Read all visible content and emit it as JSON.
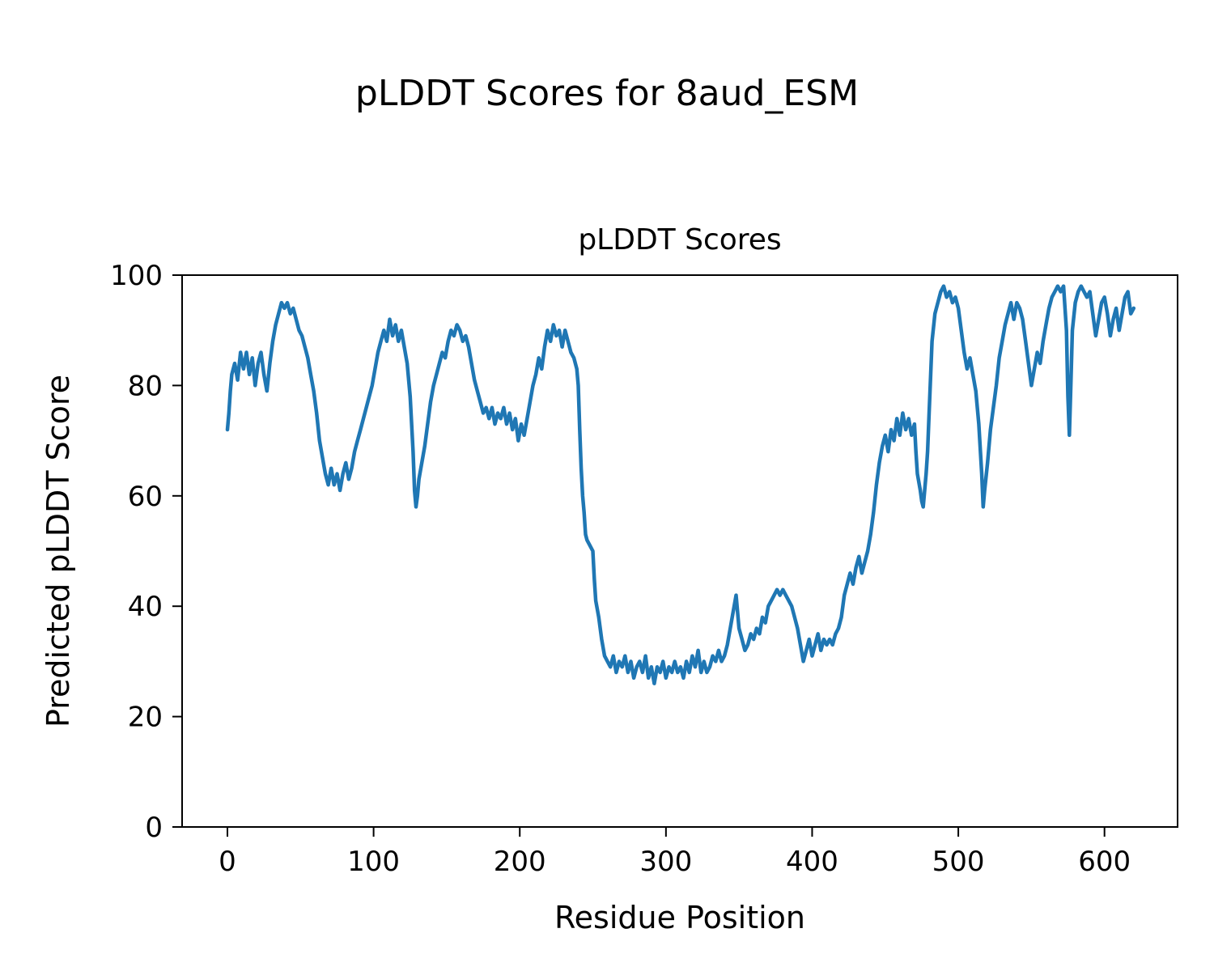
{
  "figure": {
    "suptitle": "pLDDT Scores for 8aud_ESM"
  },
  "chart_data": {
    "type": "line",
    "title": "pLDDT Scores",
    "xlabel": "Residue Position",
    "ylabel": "Predicted pLDDT Score",
    "xlim": [
      -31,
      650
    ],
    "ylim": [
      0,
      100
    ],
    "xticks": [
      0,
      100,
      200,
      300,
      400,
      500,
      600
    ],
    "yticks": [
      0,
      20,
      40,
      60,
      80,
      100
    ],
    "grid": false,
    "legend": null,
    "line_color": "#1f77b4",
    "series": [
      {
        "name": "pLDDT",
        "points": [
          [
            0,
            72
          ],
          [
            1,
            75
          ],
          [
            2,
            79
          ],
          [
            3,
            82
          ],
          [
            5,
            84
          ],
          [
            7,
            81
          ],
          [
            9,
            86
          ],
          [
            11,
            83
          ],
          [
            13,
            86
          ],
          [
            15,
            82
          ],
          [
            17,
            85
          ],
          [
            19,
            80
          ],
          [
            21,
            84
          ],
          [
            23,
            86
          ],
          [
            25,
            82
          ],
          [
            27,
            79
          ],
          [
            29,
            84
          ],
          [
            31,
            88
          ],
          [
            33,
            91
          ],
          [
            35,
            93
          ],
          [
            37,
            95
          ],
          [
            39,
            94
          ],
          [
            41,
            95
          ],
          [
            43,
            93
          ],
          [
            45,
            94
          ],
          [
            47,
            92
          ],
          [
            49,
            90
          ],
          [
            51,
            89
          ],
          [
            53,
            87
          ],
          [
            55,
            85
          ],
          [
            57,
            82
          ],
          [
            59,
            79
          ],
          [
            61,
            75
          ],
          [
            63,
            70
          ],
          [
            65,
            67
          ],
          [
            67,
            64
          ],
          [
            69,
            62
          ],
          [
            71,
            65
          ],
          [
            73,
            62
          ],
          [
            75,
            64
          ],
          [
            77,
            61
          ],
          [
            79,
            64
          ],
          [
            81,
            66
          ],
          [
            83,
            63
          ],
          [
            85,
            65
          ],
          [
            87,
            68
          ],
          [
            89,
            70
          ],
          [
            91,
            72
          ],
          [
            93,
            74
          ],
          [
            95,
            76
          ],
          [
            97,
            78
          ],
          [
            99,
            80
          ],
          [
            101,
            83
          ],
          [
            103,
            86
          ],
          [
            105,
            88
          ],
          [
            107,
            90
          ],
          [
            109,
            88
          ],
          [
            111,
            92
          ],
          [
            113,
            89
          ],
          [
            115,
            91
          ],
          [
            117,
            88
          ],
          [
            119,
            90
          ],
          [
            121,
            87
          ],
          [
            123,
            84
          ],
          [
            125,
            78
          ],
          [
            127,
            68
          ],
          [
            128,
            61
          ],
          [
            129,
            58
          ],
          [
            130,
            60
          ],
          [
            131,
            63
          ],
          [
            133,
            66
          ],
          [
            135,
            69
          ],
          [
            137,
            73
          ],
          [
            139,
            77
          ],
          [
            141,
            80
          ],
          [
            143,
            82
          ],
          [
            145,
            84
          ],
          [
            147,
            86
          ],
          [
            149,
            85
          ],
          [
            151,
            88
          ],
          [
            153,
            90
          ],
          [
            155,
            89
          ],
          [
            157,
            91
          ],
          [
            159,
            90
          ],
          [
            161,
            88
          ],
          [
            163,
            89
          ],
          [
            165,
            87
          ],
          [
            167,
            84
          ],
          [
            169,
            81
          ],
          [
            171,
            79
          ],
          [
            173,
            77
          ],
          [
            175,
            75
          ],
          [
            177,
            76
          ],
          [
            179,
            74
          ],
          [
            181,
            76
          ],
          [
            183,
            73
          ],
          [
            185,
            75
          ],
          [
            187,
            74
          ],
          [
            189,
            76
          ],
          [
            191,
            73
          ],
          [
            193,
            75
          ],
          [
            195,
            72
          ],
          [
            197,
            74
          ],
          [
            199,
            70
          ],
          [
            201,
            73
          ],
          [
            203,
            71
          ],
          [
            205,
            74
          ],
          [
            207,
            77
          ],
          [
            209,
            80
          ],
          [
            211,
            82
          ],
          [
            213,
            85
          ],
          [
            215,
            83
          ],
          [
            217,
            87
          ],
          [
            219,
            90
          ],
          [
            221,
            88
          ],
          [
            223,
            91
          ],
          [
            225,
            89
          ],
          [
            227,
            90
          ],
          [
            229,
            87
          ],
          [
            231,
            90
          ],
          [
            233,
            88
          ],
          [
            235,
            86
          ],
          [
            237,
            85
          ],
          [
            239,
            83
          ],
          [
            240,
            80
          ],
          [
            241,
            72
          ],
          [
            242,
            65
          ],
          [
            243,
            60
          ],
          [
            244,
            57
          ],
          [
            245,
            53
          ],
          [
            246,
            52
          ],
          [
            248,
            51
          ],
          [
            250,
            50
          ],
          [
            251,
            45
          ],
          [
            252,
            41
          ],
          [
            254,
            38
          ],
          [
            256,
            34
          ],
          [
            258,
            31
          ],
          [
            260,
            30
          ],
          [
            262,
            29
          ],
          [
            264,
            31
          ],
          [
            266,
            28
          ],
          [
            268,
            30
          ],
          [
            270,
            29
          ],
          [
            272,
            31
          ],
          [
            274,
            28
          ],
          [
            276,
            30
          ],
          [
            278,
            27
          ],
          [
            280,
            29
          ],
          [
            282,
            30
          ],
          [
            284,
            28
          ],
          [
            286,
            31
          ],
          [
            288,
            27
          ],
          [
            290,
            29
          ],
          [
            292,
            26
          ],
          [
            294,
            29
          ],
          [
            296,
            28
          ],
          [
            298,
            30
          ],
          [
            300,
            27
          ],
          [
            302,
            29
          ],
          [
            304,
            28
          ],
          [
            306,
            30
          ],
          [
            308,
            28
          ],
          [
            310,
            29
          ],
          [
            312,
            27
          ],
          [
            314,
            30
          ],
          [
            316,
            28
          ],
          [
            318,
            31
          ],
          [
            320,
            29
          ],
          [
            322,
            32
          ],
          [
            324,
            28
          ],
          [
            326,
            30
          ],
          [
            328,
            28
          ],
          [
            330,
            29
          ],
          [
            332,
            31
          ],
          [
            334,
            30
          ],
          [
            336,
            32
          ],
          [
            338,
            30
          ],
          [
            340,
            31
          ],
          [
            342,
            33
          ],
          [
            344,
            36
          ],
          [
            346,
            39
          ],
          [
            348,
            42
          ],
          [
            350,
            36
          ],
          [
            352,
            34
          ],
          [
            354,
            32
          ],
          [
            356,
            33
          ],
          [
            358,
            35
          ],
          [
            360,
            34
          ],
          [
            362,
            36
          ],
          [
            364,
            35
          ],
          [
            366,
            38
          ],
          [
            368,
            37
          ],
          [
            370,
            40
          ],
          [
            372,
            41
          ],
          [
            374,
            42
          ],
          [
            376,
            43
          ],
          [
            378,
            42
          ],
          [
            380,
            43
          ],
          [
            382,
            42
          ],
          [
            384,
            41
          ],
          [
            386,
            40
          ],
          [
            388,
            38
          ],
          [
            390,
            36
          ],
          [
            392,
            33
          ],
          [
            394,
            30
          ],
          [
            396,
            32
          ],
          [
            398,
            34
          ],
          [
            400,
            31
          ],
          [
            402,
            33
          ],
          [
            404,
            35
          ],
          [
            406,
            32
          ],
          [
            408,
            34
          ],
          [
            410,
            33
          ],
          [
            412,
            34
          ],
          [
            414,
            33
          ],
          [
            416,
            35
          ],
          [
            418,
            36
          ],
          [
            420,
            38
          ],
          [
            422,
            42
          ],
          [
            424,
            44
          ],
          [
            426,
            46
          ],
          [
            428,
            44
          ],
          [
            430,
            47
          ],
          [
            432,
            49
          ],
          [
            434,
            46
          ],
          [
            436,
            48
          ],
          [
            438,
            50
          ],
          [
            440,
            53
          ],
          [
            442,
            57
          ],
          [
            444,
            62
          ],
          [
            446,
            66
          ],
          [
            448,
            69
          ],
          [
            450,
            71
          ],
          [
            452,
            68
          ],
          [
            454,
            72
          ],
          [
            456,
            70
          ],
          [
            458,
            74
          ],
          [
            460,
            71
          ],
          [
            462,
            75
          ],
          [
            464,
            72
          ],
          [
            466,
            74
          ],
          [
            468,
            71
          ],
          [
            470,
            73
          ],
          [
            471,
            68
          ],
          [
            472,
            64
          ],
          [
            474,
            61
          ],
          [
            475,
            59
          ],
          [
            476,
            58
          ],
          [
            477,
            61
          ],
          [
            478,
            64
          ],
          [
            479,
            68
          ],
          [
            480,
            75
          ],
          [
            482,
            88
          ],
          [
            484,
            93
          ],
          [
            486,
            95
          ],
          [
            488,
            97
          ],
          [
            490,
            98
          ],
          [
            492,
            96
          ],
          [
            494,
            97
          ],
          [
            496,
            95
          ],
          [
            498,
            96
          ],
          [
            500,
            94
          ],
          [
            502,
            90
          ],
          [
            504,
            86
          ],
          [
            506,
            83
          ],
          [
            508,
            85
          ],
          [
            510,
            82
          ],
          [
            512,
            79
          ],
          [
            514,
            73
          ],
          [
            516,
            64
          ],
          [
            517,
            58
          ],
          [
            518,
            61
          ],
          [
            520,
            66
          ],
          [
            522,
            72
          ],
          [
            524,
            76
          ],
          [
            526,
            80
          ],
          [
            528,
            85
          ],
          [
            530,
            88
          ],
          [
            532,
            91
          ],
          [
            534,
            93
          ],
          [
            536,
            95
          ],
          [
            538,
            92
          ],
          [
            540,
            95
          ],
          [
            542,
            94
          ],
          [
            544,
            92
          ],
          [
            546,
            88
          ],
          [
            548,
            84
          ],
          [
            550,
            80
          ],
          [
            552,
            83
          ],
          [
            554,
            86
          ],
          [
            556,
            84
          ],
          [
            558,
            88
          ],
          [
            560,
            91
          ],
          [
            562,
            94
          ],
          [
            564,
            96
          ],
          [
            566,
            97
          ],
          [
            568,
            98
          ],
          [
            570,
            97
          ],
          [
            572,
            98
          ],
          [
            574,
            90
          ],
          [
            575,
            78
          ],
          [
            576,
            71
          ],
          [
            577,
            80
          ],
          [
            578,
            90
          ],
          [
            580,
            95
          ],
          [
            582,
            97
          ],
          [
            584,
            98
          ],
          [
            586,
            97
          ],
          [
            588,
            96
          ],
          [
            590,
            97
          ],
          [
            592,
            93
          ],
          [
            594,
            89
          ],
          [
            596,
            92
          ],
          [
            598,
            95
          ],
          [
            600,
            96
          ],
          [
            602,
            93
          ],
          [
            604,
            89
          ],
          [
            606,
            92
          ],
          [
            608,
            94
          ],
          [
            610,
            90
          ],
          [
            612,
            93
          ],
          [
            614,
            96
          ],
          [
            616,
            97
          ],
          [
            618,
            93
          ],
          [
            620,
            94
          ]
        ]
      }
    ]
  }
}
